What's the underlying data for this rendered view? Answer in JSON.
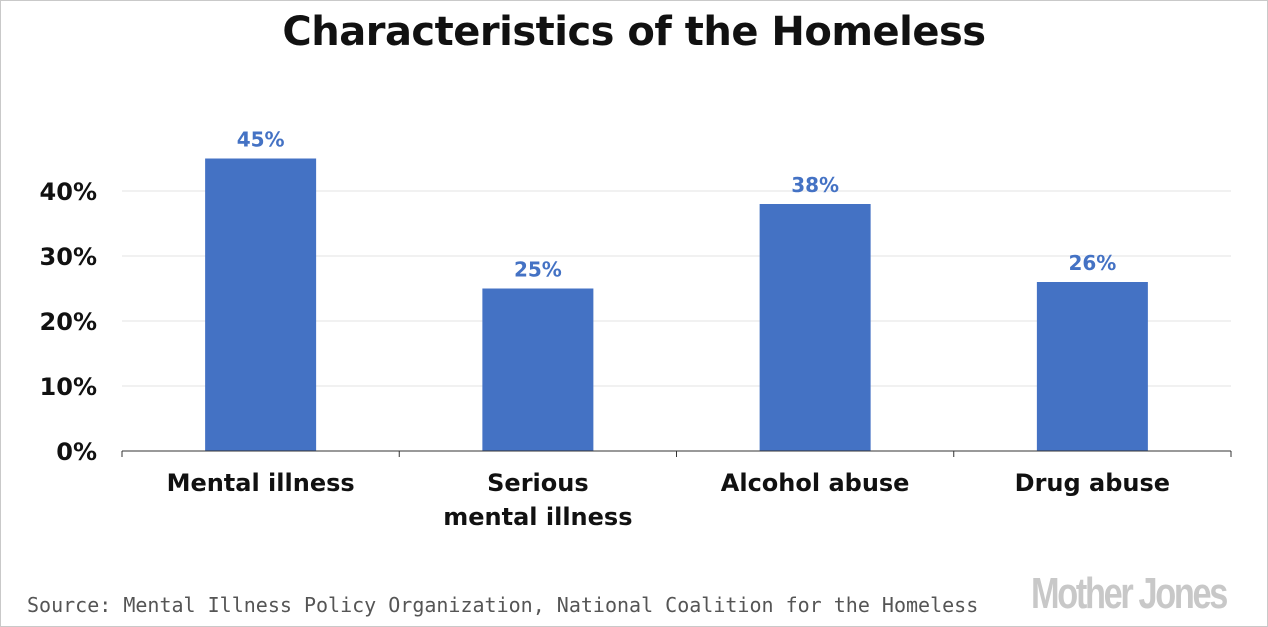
{
  "chart_data": {
    "type": "bar",
    "title": "Characteristics of the Homeless",
    "categories": [
      [
        "Mental illness"
      ],
      [
        "Serious",
        "mental illness"
      ],
      [
        "Alcohol abuse"
      ],
      [
        "Drug abuse"
      ]
    ],
    "values": [
      45,
      25,
      38,
      26
    ],
    "data_labels": [
      "45%",
      "25%",
      "38%",
      "26%"
    ],
    "y_ticks": [
      0,
      10,
      20,
      30,
      40
    ],
    "y_tick_labels": [
      "0%",
      "10%",
      "20%",
      "30%",
      "40%"
    ],
    "ylim": [
      0,
      50
    ],
    "grid": true,
    "bar_color": "#4472c4",
    "label_color": "#4472c4"
  },
  "footer": {
    "source": "Source: Mental Illness Policy Organization, National Coalition for the Homeless",
    "logo": "Mother Jones"
  }
}
